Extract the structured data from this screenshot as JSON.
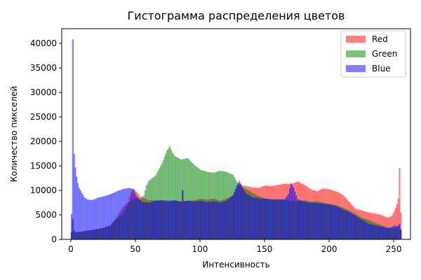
{
  "chart_data": {
    "type": "bar",
    "title": "Гистограмма распределения цветов",
    "xlabel": "Интенсивность",
    "ylabel": "Количество пикселей",
    "xlim": [
      -7,
      263
    ],
    "ylim": [
      0,
      43000
    ],
    "xticks": [
      0,
      50,
      100,
      150,
      200,
      250
    ],
    "yticks": [
      0,
      5000,
      10000,
      15000,
      20000,
      25000,
      30000,
      35000,
      40000
    ],
    "grid": false,
    "legend_position": "top-right",
    "series": [
      {
        "name": "Red",
        "color": "#ff0000",
        "opacity": 0.5,
        "points": [
          [
            0,
            1500
          ],
          [
            1,
            4200
          ],
          [
            2,
            1800
          ],
          [
            3,
            1500
          ],
          [
            4,
            1450
          ],
          [
            5,
            1500
          ],
          [
            8,
            1600
          ],
          [
            10,
            1700
          ],
          [
            15,
            1900
          ],
          [
            20,
            2100
          ],
          [
            25,
            2400
          ],
          [
            30,
            2900
          ],
          [
            35,
            4500
          ],
          [
            40,
            6600
          ],
          [
            44,
            7700
          ],
          [
            46,
            9500
          ],
          [
            48,
            10400
          ],
          [
            50,
            9800
          ],
          [
            53,
            8800
          ],
          [
            56,
            8400
          ],
          [
            60,
            8000
          ],
          [
            70,
            7900
          ],
          [
            75,
            7700
          ],
          [
            80,
            7900
          ],
          [
            85,
            7700
          ],
          [
            86,
            10000
          ],
          [
            87,
            7800
          ],
          [
            90,
            7900
          ],
          [
            95,
            8000
          ],
          [
            100,
            8300
          ],
          [
            105,
            8100
          ],
          [
            110,
            8300
          ],
          [
            115,
            7900
          ],
          [
            120,
            8300
          ],
          [
            125,
            9000
          ],
          [
            128,
            10500
          ],
          [
            130,
            11500
          ],
          [
            132,
            11000
          ],
          [
            135,
            10900
          ],
          [
            140,
            10600
          ],
          [
            145,
            10500
          ],
          [
            150,
            11000
          ],
          [
            155,
            10900
          ],
          [
            160,
            11100
          ],
          [
            165,
            11400
          ],
          [
            170,
            11300
          ],
          [
            175,
            11800
          ],
          [
            180,
            11200
          ],
          [
            185,
            10300
          ],
          [
            190,
            9800
          ],
          [
            195,
            10400
          ],
          [
            200,
            10200
          ],
          [
            205,
            9800
          ],
          [
            210,
            9100
          ],
          [
            215,
            7700
          ],
          [
            220,
            6200
          ],
          [
            225,
            5900
          ],
          [
            230,
            5500
          ],
          [
            235,
            5300
          ],
          [
            240,
            5000
          ],
          [
            245,
            4400
          ],
          [
            248,
            4800
          ],
          [
            250,
            5800
          ],
          [
            252,
            7200
          ],
          [
            253,
            8300
          ],
          [
            254,
            14600
          ],
          [
            255,
            5500
          ]
        ]
      },
      {
        "name": "Green",
        "color": "#008000",
        "opacity": 0.5,
        "points": [
          [
            0,
            1500
          ],
          [
            1,
            4000
          ],
          [
            2,
            1800
          ],
          [
            3,
            1500
          ],
          [
            4,
            1450
          ],
          [
            5,
            1500
          ],
          [
            8,
            1600
          ],
          [
            10,
            1700
          ],
          [
            15,
            1900
          ],
          [
            20,
            2100
          ],
          [
            25,
            2400
          ],
          [
            30,
            2800
          ],
          [
            35,
            4200
          ],
          [
            40,
            5200
          ],
          [
            45,
            7700
          ],
          [
            50,
            8400
          ],
          [
            53,
            8100
          ],
          [
            56,
            9000
          ],
          [
            58,
            11000
          ],
          [
            60,
            12000
          ],
          [
            65,
            13000
          ],
          [
            70,
            15500
          ],
          [
            74,
            18200
          ],
          [
            76,
            19000
          ],
          [
            78,
            17800
          ],
          [
            80,
            17000
          ],
          [
            85,
            16300
          ],
          [
            90,
            16600
          ],
          [
            95,
            15200
          ],
          [
            100,
            14200
          ],
          [
            105,
            13800
          ],
          [
            110,
            13600
          ],
          [
            115,
            14000
          ],
          [
            120,
            13800
          ],
          [
            125,
            13200
          ],
          [
            128,
            11800
          ],
          [
            130,
            11000
          ],
          [
            135,
            10300
          ],
          [
            140,
            9500
          ],
          [
            145,
            8800
          ],
          [
            150,
            8400
          ],
          [
            155,
            8100
          ],
          [
            160,
            8000
          ],
          [
            165,
            8000
          ],
          [
            170,
            7900
          ],
          [
            175,
            7800
          ],
          [
            180,
            8000
          ],
          [
            185,
            7700
          ],
          [
            190,
            7800
          ],
          [
            195,
            7500
          ],
          [
            200,
            7200
          ],
          [
            205,
            7000
          ],
          [
            210,
            6500
          ],
          [
            215,
            5900
          ],
          [
            220,
            5200
          ],
          [
            225,
            4400
          ],
          [
            230,
            4000
          ],
          [
            235,
            3400
          ],
          [
            240,
            2900
          ],
          [
            245,
            2400
          ],
          [
            250,
            2200
          ],
          [
            253,
            2800
          ],
          [
            254,
            2300
          ],
          [
            255,
            2000
          ]
        ]
      },
      {
        "name": "Blue",
        "color": "#0000ff",
        "opacity": 0.5,
        "points": [
          [
            0,
            5200
          ],
          [
            1,
            40800
          ],
          [
            2,
            17500
          ],
          [
            3,
            14700
          ],
          [
            4,
            12800
          ],
          [
            5,
            11500
          ],
          [
            6,
            10500
          ],
          [
            8,
            9500
          ],
          [
            10,
            8600
          ],
          [
            12,
            8200
          ],
          [
            15,
            8000
          ],
          [
            18,
            8200
          ],
          [
            20,
            8500
          ],
          [
            25,
            8800
          ],
          [
            30,
            9200
          ],
          [
            35,
            9800
          ],
          [
            40,
            10300
          ],
          [
            45,
            10500
          ],
          [
            48,
            10200
          ],
          [
            50,
            8900
          ],
          [
            55,
            7600
          ],
          [
            60,
            7500
          ],
          [
            65,
            7900
          ],
          [
            70,
            8000
          ],
          [
            75,
            7900
          ],
          [
            80,
            8000
          ],
          [
            85,
            7700
          ],
          [
            86,
            10000
          ],
          [
            87,
            7800
          ],
          [
            90,
            7900
          ],
          [
            95,
            7700
          ],
          [
            100,
            7900
          ],
          [
            105,
            7600
          ],
          [
            110,
            7800
          ],
          [
            115,
            7500
          ],
          [
            120,
            7900
          ],
          [
            125,
            9000
          ],
          [
            128,
            11000
          ],
          [
            130,
            12000
          ],
          [
            132,
            10800
          ],
          [
            135,
            9400
          ],
          [
            140,
            8600
          ],
          [
            145,
            8400
          ],
          [
            150,
            8300
          ],
          [
            155,
            8200
          ],
          [
            160,
            8200
          ],
          [
            165,
            8200
          ],
          [
            168,
            9300
          ],
          [
            170,
            11500
          ],
          [
            172,
            10500
          ],
          [
            175,
            8200
          ],
          [
            180,
            7700
          ],
          [
            185,
            7500
          ],
          [
            190,
            7400
          ],
          [
            195,
            7300
          ],
          [
            200,
            7100
          ],
          [
            205,
            6800
          ],
          [
            210,
            6100
          ],
          [
            215,
            5600
          ],
          [
            220,
            4800
          ],
          [
            225,
            4000
          ],
          [
            230,
            3200
          ],
          [
            235,
            2900
          ],
          [
            240,
            2600
          ],
          [
            245,
            2300
          ],
          [
            248,
            2500
          ],
          [
            250,
            2900
          ],
          [
            252,
            2600
          ],
          [
            254,
            3200
          ],
          [
            255,
            2000
          ]
        ]
      }
    ]
  }
}
